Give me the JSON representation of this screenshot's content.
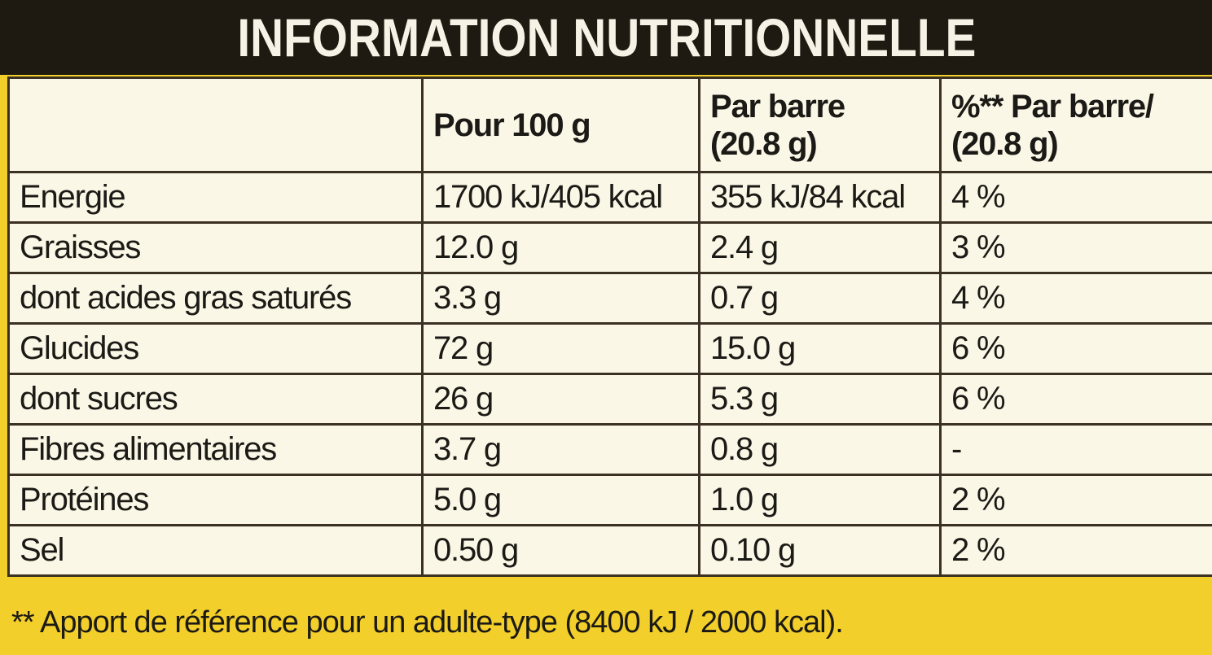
{
  "header": {
    "title": "INFORMATION NUTRITIONNELLE"
  },
  "table": {
    "columns": [
      "Pour 100 g",
      "Par barre\n(20.8 g)",
      "%** Par barre/\n(20.8 g)"
    ],
    "rows": [
      [
        "Energie",
        "1700 kJ/405 kcal",
        "355 kJ/84 kcal",
        "4 %"
      ],
      [
        "Graisses",
        "12.0 g",
        "2.4 g",
        "3 %"
      ],
      [
        "dont acides gras saturés",
        "3.3 g",
        "0.7 g",
        "4 %"
      ],
      [
        "Glucides",
        "72 g",
        "15.0 g",
        "6 %"
      ],
      [
        "dont sucres",
        "26 g",
        "5.3 g",
        "6 %"
      ],
      [
        "Fibres alimentaires",
        "3.7 g",
        "0.8 g",
        "-"
      ],
      [
        "Protéines",
        "5.0 g",
        "1.0 g",
        "2 %"
      ],
      [
        "Sel",
        "0.50 g",
        "0.10 g",
        "2 %"
      ]
    ]
  },
  "footnote": "** Apport de référence pour un adulte-type (8400 kJ / 2000 kcal)."
}
